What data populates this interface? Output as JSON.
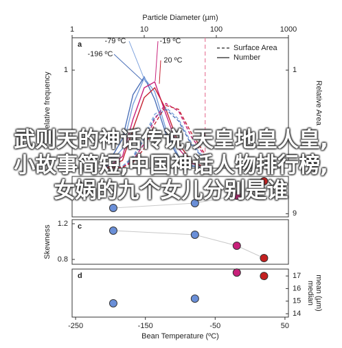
{
  "chart_data": [
    {
      "type": "line",
      "panel_label": "a",
      "title": "Particle Diameter (µm)",
      "y_label": "Relative frequency",
      "y2_label": "Relative Area",
      "xlog": true,
      "xlim": [
        1,
        1000
      ],
      "xticks": [
        1,
        10,
        100,
        1000
      ],
      "ylim": [
        0,
        1.33
      ],
      "yticks": [
        1
      ],
      "y2lim": [
        0,
        1.33
      ],
      "y2ticks": [
        1
      ],
      "reference_x": 70,
      "reference_color": "#e87a9a",
      "legend": [
        {
          "name": "Surface Area",
          "dash": true
        },
        {
          "name": "Number",
          "dash": false
        }
      ],
      "annotations": [
        {
          "text": "-79 ºC",
          "color": "#7aa0dc"
        },
        {
          "text": "-196 ºC",
          "color": "#4a6fb8"
        },
        {
          "text": "-19 ºC",
          "color": "#c8207a"
        },
        {
          "text": "20 ºC",
          "color": "#c42030"
        }
      ],
      "series": [
        {
          "color": "#4a6fb8",
          "dash": false,
          "x": [
            3,
            5,
            7,
            10,
            14,
            20,
            30,
            45,
            70
          ],
          "values": [
            0.02,
            0.3,
            0.75,
            0.93,
            0.7,
            0.35,
            0.1,
            0.02,
            0
          ]
        },
        {
          "color": "#7aa0dc",
          "dash": false,
          "x": [
            3,
            5,
            7,
            10,
            14,
            20,
            30,
            45,
            70
          ],
          "values": [
            0.01,
            0.2,
            0.65,
            0.92,
            0.78,
            0.4,
            0.12,
            0.03,
            0
          ]
        },
        {
          "color": "#c8207a",
          "dash": false,
          "x": [
            3,
            5,
            7,
            10,
            14,
            20,
            30,
            45,
            70
          ],
          "values": [
            0,
            0.12,
            0.5,
            0.82,
            0.88,
            0.55,
            0.2,
            0.05,
            0.01
          ]
        },
        {
          "color": "#c42030",
          "dash": false,
          "x": [
            3,
            5,
            7,
            10,
            14,
            20,
            30,
            45,
            70
          ],
          "values": [
            0,
            0.08,
            0.4,
            0.72,
            0.82,
            0.6,
            0.25,
            0.07,
            0.01
          ]
        },
        {
          "color": "#4a6fb8",
          "dash": true,
          "axis": "y2",
          "x": [
            3,
            5,
            7,
            10,
            14,
            20,
            30,
            45,
            70
          ],
          "values": [
            0,
            0.02,
            0.1,
            0.3,
            0.52,
            0.6,
            0.48,
            0.24,
            0.08
          ]
        },
        {
          "color": "#7aa0dc",
          "dash": true,
          "axis": "y2",
          "x": [
            3,
            5,
            7,
            10,
            14,
            20,
            30,
            45,
            70
          ],
          "values": [
            0,
            0.02,
            0.12,
            0.33,
            0.55,
            0.62,
            0.5,
            0.26,
            0.09
          ]
        },
        {
          "color": "#c8207a",
          "dash": true,
          "axis": "y2",
          "x": [
            3,
            5,
            7,
            10,
            14,
            20,
            30,
            45,
            70
          ],
          "values": [
            0,
            0.01,
            0.08,
            0.25,
            0.5,
            0.66,
            0.58,
            0.32,
            0.12
          ]
        },
        {
          "color": "#c42030",
          "dash": true,
          "axis": "y2",
          "x": [
            3,
            5,
            7,
            10,
            14,
            20,
            30,
            45,
            70
          ],
          "values": [
            0,
            0.01,
            0.06,
            0.2,
            0.45,
            0.64,
            0.6,
            0.36,
            0.14
          ]
        }
      ]
    },
    {
      "type": "scatter",
      "panel_label": "b",
      "xlim": [
        -255,
        55
      ],
      "y2lim": [
        8.7,
        12.5
      ],
      "y2ticks": [
        9
      ],
      "trend": true,
      "x": [
        -196,
        -79,
        -19,
        20
      ],
      "values": [
        9.54,
        9.99,
        10.7,
        12.05
      ],
      "colors": [
        "#6a8fd8",
        "#6a8fd8",
        "#c8207a",
        "#c42020"
      ]
    },
    {
      "type": "scatter",
      "panel_label": "c",
      "y_label": "Skewness",
      "xlim": [
        -255,
        55
      ],
      "ylim": [
        0.746,
        1.246
      ],
      "yticks": [
        1.2,
        0.8
      ],
      "trend": true,
      "x": [
        -196,
        -79,
        -19,
        20
      ],
      "values": [
        1.123,
        1.077,
        0.954,
        0.815
      ],
      "colors": [
        "#6a8fd8",
        "#6a8fd8",
        "#c8207a",
        "#c42020"
      ]
    },
    {
      "type": "scatter",
      "panel_label": "d",
      "y2_label": [
        "mean (µm)",
        "median"
      ],
      "x_label": "Bean Temperature (ºC)",
      "xlim": [
        -255,
        55
      ],
      "xticks": [
        -250,
        -150,
        -50,
        50
      ],
      "y2lim": [
        13.73,
        17.55
      ],
      "y2ticks": [
        14,
        15,
        16,
        17
      ],
      "trend": false,
      "x": [
        -196,
        -79,
        -19,
        20
      ],
      "values": [
        14.83,
        15.2,
        17.27,
        17.0
      ],
      "colors": [
        "#6a8fd8",
        "#6a8fd8",
        "#c8207a",
        "#c42020"
      ]
    }
  ],
  "overlay_text": "武则天的神话传说,天皇地皇人皇,小故事简短,中国神话人物排行榜,女娲的九个女儿分别是谁"
}
